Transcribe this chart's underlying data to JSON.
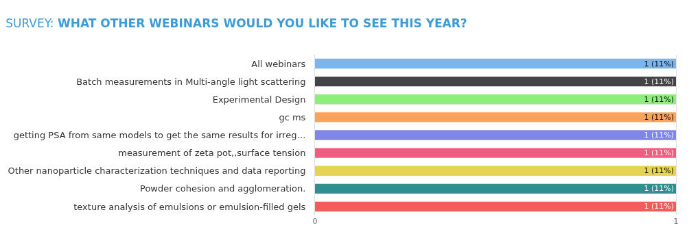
{
  "chart_data": {
    "type": "bar",
    "orientation": "horizontal",
    "title": "SURVEY: WHAT OTHER WEBINARS WOULD YOU LIKE TO SEE THIS YEAR?",
    "categories": [
      "All webinars",
      "Batch measurements in Multi-angle light scattering",
      "Experimental Design",
      "gc ms",
      "getting PSA from same models to get the same results for irreg…",
      "measurement of zeta pot,,surface tension",
      "Other nanoparticle characterization techniques and data reporting",
      "Powder cohesion and agglomeration.",
      "texture analysis of emulsions or emulsion-filled gels"
    ],
    "values": [
      1,
      1,
      1,
      1,
      1,
      1,
      1,
      1,
      1
    ],
    "colors": [
      "#7cb5ec",
      "#434348",
      "#90ed7d",
      "#f7a35c",
      "#8085e9",
      "#f15c80",
      "#e4d354",
      "#2b908f",
      "#f45b5b"
    ],
    "value_labels": [
      "1 (11%)",
      "1 (11%)",
      "1 (11%)",
      "1 (11%)",
      "1 (11%)",
      "1 (11%)",
      "1 (11%)",
      "1 (11%)",
      "1 (11%)"
    ],
    "xlim": [
      0,
      1
    ],
    "xticks": [
      0,
      1
    ]
  }
}
